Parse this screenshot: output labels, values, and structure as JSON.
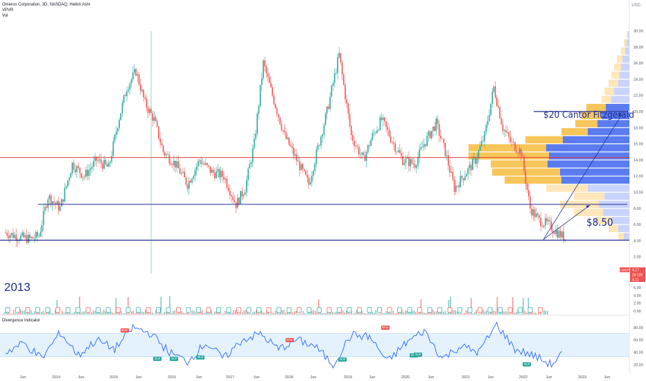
{
  "header": {
    "symbol_line": "Omeros Corporation, 3D, NASDAQ, Heikin Ashi",
    "indicator_1": "VPVR",
    "indicator_2": "Vol",
    "currency": "USD"
  },
  "annotations": {
    "target_high": "$20 Cantor Fitzgerald",
    "target_low": "$8.50",
    "year_marker": "2013"
  },
  "price_badges": {
    "ticker": "OMER",
    "last": "4.17",
    "countdown": "2d 12h",
    "low": "4.11"
  },
  "oscillator": {
    "title": "Divergence Indicator",
    "signal_labels": [
      "Bear",
      "Bull",
      "Bull",
      "Bull",
      "Bear",
      "Bull",
      "Bear",
      "Bull",
      "Bull",
      "Bull"
    ]
  },
  "colors": {
    "up_candle": "#26a69a",
    "down_candle": "#ef5350",
    "vp_up": "#f7c65a",
    "vp_down": "#5b7cf0",
    "vp_up_light": "#fde6b8",
    "vp_down_light": "#c9d4fb",
    "support_line": "#1f2a8f",
    "resistance_line": "#e53935",
    "oscillator_line": "#2962ff",
    "oscillator_band": "#e3f2fd"
  },
  "chart_data": {
    "type": "line",
    "title": "Omeros Corporation, 3D, NASDAQ, Heikin Ashi",
    "ylabel": "USD",
    "price_axis": {
      "ticks": [
        "30.00",
        "28.00",
        "26.00",
        "24.00",
        "22.00",
        "20.00",
        "18.00",
        "16.00",
        "14.00",
        "12.00",
        "10.00",
        "8.00",
        "6.00",
        "4.00",
        "2.00",
        "0.00"
      ],
      "ylim": [
        0,
        30
      ]
    },
    "volume_axis": {
      "ticks": [
        "8.00",
        "6.00",
        "4.00",
        "2.00",
        "0.00"
      ]
    },
    "oscillator_axis": {
      "ticks": [
        "80.00",
        "60.00",
        "40.00",
        "20.00"
      ],
      "band": [
        33,
        70
      ]
    },
    "time_axis": {
      "ticks": [
        "Jun",
        "2014",
        "Jun",
        "2015",
        "Jun",
        "2016",
        "Jun",
        "2017",
        "Jun",
        "2018",
        "Jun",
        "2019",
        "Jun",
        "2020",
        "Jun",
        "2021",
        "Jun",
        "2022",
        "Jun",
        "2023",
        "Jun"
      ]
    },
    "series": [
      {
        "x": [
          2013.0,
          2013.2,
          2013.4,
          2013.55,
          2013.7,
          2013.9,
          2014.1,
          2014.3,
          2014.5,
          2014.7,
          2014.85,
          2015.0,
          2015.15,
          2015.3,
          2015.45,
          2015.6,
          2015.8,
          2016.0,
          2016.2,
          2016.4,
          2016.6,
          2016.8,
          2016.95,
          2017.1,
          2017.25,
          2017.4,
          2017.6,
          2017.8,
          2018.0,
          2018.1,
          2018.3,
          2018.5,
          2018.7,
          2018.9,
          2019.05,
          2019.2,
          2019.4,
          2019.55,
          2019.75,
          2019.9,
          2020.1,
          2020.25,
          2020.4,
          2020.6,
          2020.75,
          2020.9,
          2021.05,
          2021.2,
          2021.35,
          2021.5,
          2021.65,
          2021.8,
          2021.95,
          2022.1,
          2022.25
        ],
        "values": [
          5.0,
          4.5,
          4.2,
          4.6,
          9.5,
          8.0,
          13.5,
          12.0,
          14.0,
          13.0,
          18.5,
          23.0,
          25.0,
          21.0,
          19.0,
          15.0,
          13.5,
          11.0,
          14.0,
          12.5,
          12.0,
          8.5,
          10.5,
          16.0,
          26.0,
          22.0,
          17.0,
          14.0,
          11.0,
          14.0,
          20.0,
          27.0,
          17.0,
          14.0,
          17.0,
          19.0,
          16.0,
          14.0,
          13.5,
          16.0,
          18.5,
          15.0,
          10.5,
          12.5,
          14.0,
          17.0,
          23.0,
          18.0,
          16.0,
          15.0,
          8.0,
          6.5,
          6.0,
          5.0,
          4.17
        ]
      },
      {
        "name": "Divergence Indicator",
        "x": [
          2013.0,
          2013.3,
          2013.6,
          2013.9,
          2014.2,
          2014.5,
          2014.8,
          2015.1,
          2015.4,
          2015.7,
          2016.0,
          2016.3,
          2016.6,
          2016.9,
          2017.2,
          2017.5,
          2017.8,
          2018.1,
          2018.4,
          2018.7,
          2019.0,
          2019.3,
          2019.6,
          2019.9,
          2020.2,
          2020.5,
          2020.8,
          2021.1,
          2021.4,
          2021.7,
          2022.0,
          2022.2
        ],
        "values": [
          40,
          55,
          30,
          72,
          35,
          60,
          45,
          80,
          70,
          40,
          25,
          55,
          30,
          60,
          70,
          45,
          60,
          50,
          20,
          68,
          65,
          25,
          55,
          75,
          30,
          50,
          40,
          85,
          45,
          35,
          20,
          40
        ]
      }
    ],
    "levels": [
      {
        "label": "$20 Cantor Fitzgerald",
        "value": 20.0
      },
      {
        "label": "resistance",
        "value": 14.3
      },
      {
        "label": "$8.50",
        "value": 8.5
      },
      {
        "label": "support",
        "value": 4.1
      }
    ]
  }
}
